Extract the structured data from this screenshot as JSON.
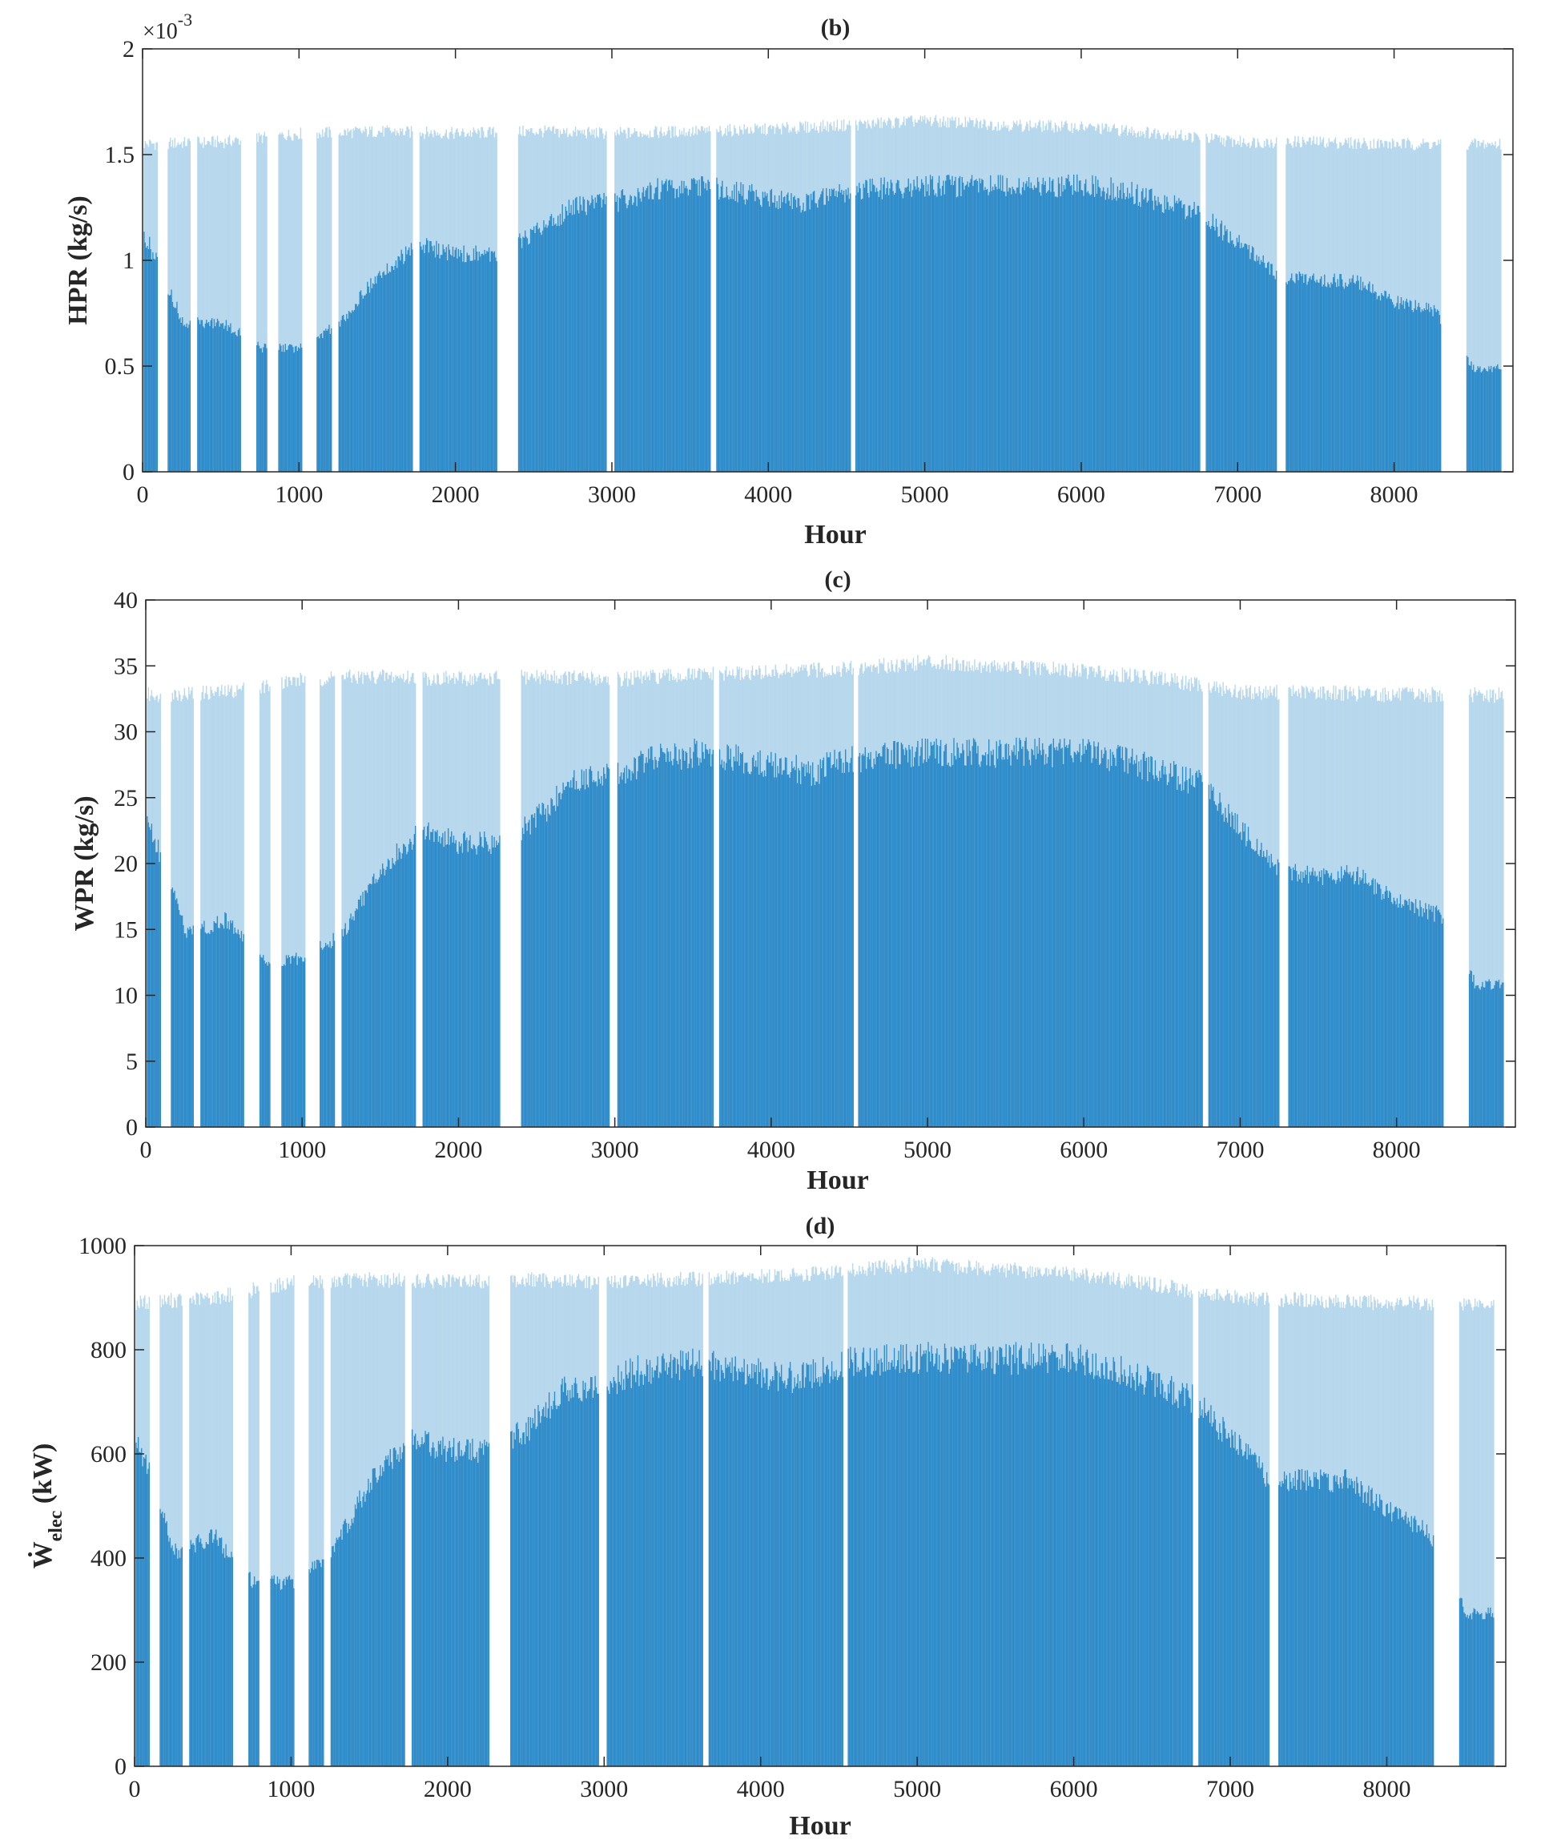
{
  "series_color": "#0072BD",
  "chart_data": [
    {
      "type": "bar",
      "panel": "b",
      "title": "(b)",
      "xlabel": "Hour",
      "ylabel": "HPR (kg/s)",
      "ylabel_main": "HPR (kg/s)",
      "ylabel_sub": "",
      "ylabel_suffix": "",
      "y_exponent_base": "×10",
      "y_exponent": "-3",
      "xlim": [
        0,
        8760
      ],
      "ylim": [
        0,
        2
      ],
      "xticks": [
        0,
        1000,
        2000,
        3000,
        4000,
        5000,
        6000,
        7000,
        8000
      ],
      "xtick_labels": [
        "0",
        "1000",
        "2000",
        "3000",
        "4000",
        "5000",
        "6000",
        "7000",
        "8000"
      ],
      "yticks": [
        0,
        0.5,
        1,
        1.5,
        2
      ],
      "ytick_labels": [
        "0",
        "0.5",
        "1",
        "1.5",
        "2"
      ],
      "bar_width_hours": 7,
      "peak_envelope": {
        "hours": [
          0,
          500,
          1000,
          1500,
          2000,
          2500,
          3000,
          3500,
          4000,
          4500,
          5000,
          5500,
          6000,
          6500,
          7000,
          7500,
          8000,
          8500,
          8760
        ],
        "values": [
          1.55,
          1.56,
          1.6,
          1.61,
          1.6,
          1.61,
          1.6,
          1.61,
          1.62,
          1.64,
          1.66,
          1.64,
          1.63,
          1.6,
          1.56,
          1.56,
          1.55,
          1.55,
          1.55
        ]
      },
      "typical_envelope": {
        "hours": [
          0,
          250,
          500,
          750,
          1000,
          1250,
          1500,
          1750,
          2000,
          2250,
          2500,
          2750,
          3000,
          3250,
          3500,
          3750,
          4000,
          4250,
          4500,
          5000,
          5500,
          6000,
          6250,
          6500,
          6750,
          7000,
          7250,
          7500,
          7750,
          8000,
          8250,
          8500,
          8760
        ],
        "values": [
          1.15,
          0.72,
          0.72,
          0.6,
          0.6,
          0.72,
          0.95,
          1.1,
          1.05,
          1.05,
          1.15,
          1.28,
          1.3,
          1.36,
          1.38,
          1.36,
          1.32,
          1.3,
          1.36,
          1.38,
          1.38,
          1.38,
          1.36,
          1.3,
          1.25,
          1.1,
          0.95,
          0.92,
          0.92,
          0.82,
          0.78,
          0.5,
          0.5
        ]
      },
      "off_periods_hours": [
        [
          90,
          150
        ],
        [
          300,
          340
        ],
        [
          620,
          720
        ],
        [
          790,
          860
        ],
        [
          1010,
          1100
        ],
        [
          1200,
          1240
        ],
        [
          1720,
          1760
        ],
        [
          2260,
          2390
        ],
        [
          2960,
          3010
        ],
        [
          3620,
          3660
        ],
        [
          4520,
          4550
        ],
        [
          6750,
          6790
        ],
        [
          7240,
          7300
        ],
        [
          8290,
          8450
        ],
        [
          8680,
          8760
        ]
      ]
    },
    {
      "type": "bar",
      "panel": "c",
      "title": "(c)",
      "xlabel": "Hour",
      "ylabel": "WPR (kg/s)",
      "ylabel_main": "WPR (kg/s)",
      "ylabel_sub": "",
      "ylabel_suffix": "",
      "y_exponent_base": "",
      "y_exponent": "",
      "xlim": [
        0,
        8760
      ],
      "ylim": [
        0,
        40
      ],
      "xticks": [
        0,
        1000,
        2000,
        3000,
        4000,
        5000,
        6000,
        7000,
        8000
      ],
      "xtick_labels": [
        "0",
        "1000",
        "2000",
        "3000",
        "4000",
        "5000",
        "6000",
        "7000",
        "8000"
      ],
      "yticks": [
        0,
        5,
        10,
        15,
        20,
        25,
        30,
        35,
        40
      ],
      "ytick_labels": [
        "0",
        "5",
        "10",
        "15",
        "20",
        "25",
        "30",
        "35",
        "40"
      ],
      "bar_width_hours": 7,
      "peak_envelope": {
        "hours": [
          0,
          500,
          1000,
          1500,
          2000,
          2500,
          3000,
          3500,
          4000,
          4500,
          5000,
          5500,
          6000,
          6500,
          7000,
          7500,
          8000,
          8500,
          8760
        ],
        "values": [
          32.8,
          33.0,
          34.0,
          34.2,
          34.0,
          34.2,
          34.0,
          34.3,
          34.5,
          34.8,
          35.3,
          34.9,
          34.6,
          34.0,
          33.0,
          33.0,
          32.8,
          32.8,
          32.8
        ]
      },
      "typical_envelope": {
        "hours": [
          0,
          250,
          500,
          750,
          1000,
          1250,
          1500,
          1750,
          2000,
          2250,
          2500,
          2750,
          3000,
          3250,
          3500,
          3750,
          4000,
          4250,
          4500,
          5000,
          5500,
          6000,
          6250,
          6500,
          6750,
          7000,
          7250,
          7500,
          7750,
          8000,
          8250,
          8500,
          8760
        ],
        "values": [
          24,
          15,
          16,
          13,
          13,
          15,
          20,
          23,
          22,
          22,
          24,
          27,
          27.5,
          28.5,
          29,
          28.5,
          28,
          27.5,
          28.5,
          29,
          29,
          29,
          28.5,
          27.5,
          26.5,
          23,
          20,
          19.5,
          19.5,
          17.5,
          16.5,
          11,
          11
        ]
      },
      "off_periods_hours": [
        [
          90,
          150
        ],
        [
          300,
          340
        ],
        [
          620,
          720
        ],
        [
          790,
          860
        ],
        [
          1010,
          1100
        ],
        [
          1200,
          1240
        ],
        [
          1720,
          1760
        ],
        [
          2260,
          2390
        ],
        [
          2960,
          3010
        ],
        [
          3620,
          3660
        ],
        [
          4520,
          4550
        ],
        [
          6750,
          6790
        ],
        [
          7240,
          7300
        ],
        [
          8290,
          8450
        ],
        [
          8680,
          8760
        ]
      ]
    },
    {
      "type": "bar",
      "panel": "d",
      "title": "(d)",
      "xlabel": "Hour",
      "ylabel": "Ẇelec (kW)",
      "ylabel_main": "Ẇ",
      "ylabel_sub": "elec",
      "ylabel_suffix": " (kW)",
      "y_exponent_base": "",
      "y_exponent": "",
      "xlim": [
        0,
        8760
      ],
      "ylim": [
        0,
        1000
      ],
      "xticks": [
        0,
        1000,
        2000,
        3000,
        4000,
        5000,
        6000,
        7000,
        8000
      ],
      "xtick_labels": [
        "0",
        "1000",
        "2000",
        "3000",
        "4000",
        "5000",
        "6000",
        "7000",
        "8000"
      ],
      "yticks": [
        0,
        200,
        400,
        600,
        800,
        1000
      ],
      "ytick_labels": [
        "0",
        "200",
        "400",
        "600",
        "800",
        "1000"
      ],
      "bar_width_hours": 7,
      "peak_envelope": {
        "hours": [
          0,
          500,
          1000,
          1500,
          2000,
          2500,
          3000,
          3500,
          4000,
          4500,
          5000,
          5500,
          6000,
          6500,
          7000,
          7500,
          8000,
          8500,
          8760
        ],
        "values": [
          890,
          900,
          930,
          935,
          930,
          935,
          930,
          935,
          940,
          950,
          965,
          955,
          945,
          925,
          900,
          895,
          890,
          890,
          890
        ]
      },
      "typical_envelope": {
        "hours": [
          0,
          250,
          500,
          750,
          1000,
          1250,
          1500,
          1750,
          2000,
          2250,
          2500,
          2750,
          3000,
          3250,
          3500,
          3750,
          4000,
          4250,
          4500,
          5000,
          5500,
          6000,
          6250,
          6500,
          6750,
          7000,
          7250,
          7500,
          7750,
          8000,
          8250,
          8500,
          8760
        ],
        "values": [
          650,
          420,
          450,
          360,
          360,
          420,
          560,
          640,
          620,
          620,
          660,
          740,
          750,
          780,
          790,
          780,
          770,
          760,
          790,
          800,
          800,
          800,
          780,
          750,
          720,
          640,
          560,
          560,
          560,
          500,
          460,
          300,
          300
        ]
      },
      "off_periods_hours": [
        [
          90,
          150
        ],
        [
          300,
          340
        ],
        [
          620,
          720
        ],
        [
          790,
          860
        ],
        [
          1010,
          1100
        ],
        [
          1200,
          1240
        ],
        [
          1720,
          1760
        ],
        [
          2260,
          2390
        ],
        [
          2960,
          3010
        ],
        [
          3620,
          3660
        ],
        [
          4520,
          4550
        ],
        [
          6750,
          6790
        ],
        [
          7240,
          7300
        ],
        [
          8290,
          8450
        ],
        [
          8680,
          8760
        ]
      ]
    }
  ]
}
